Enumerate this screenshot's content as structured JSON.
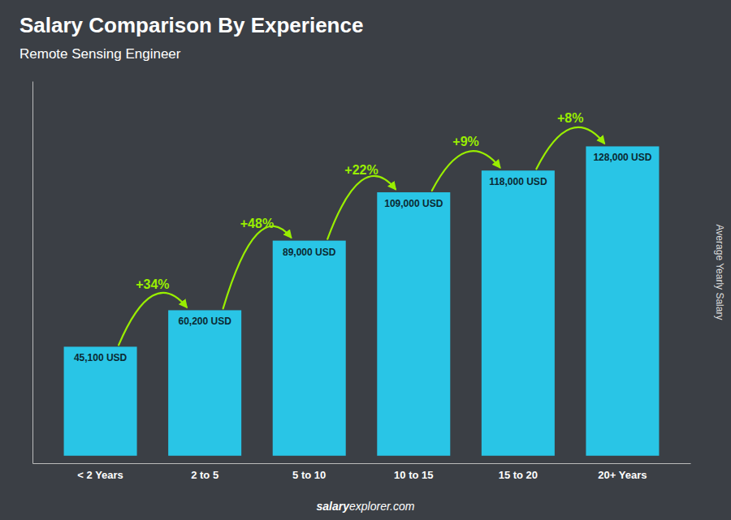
{
  "chart_data": {
    "type": "bar",
    "title": "Salary Comparison By Experience",
    "subtitle": "Remote Sensing Engineer",
    "y_label": "Average Yearly Salary",
    "categories": [
      "< 2 Years",
      "2 to 5",
      "5 to 10",
      "10 to 15",
      "15 to 20",
      "20+ Years"
    ],
    "values": [
      45100,
      60200,
      89000,
      109000,
      118000,
      128000
    ],
    "value_labels": [
      "45,100 USD",
      "60,200 USD",
      "89,000 USD",
      "109,000 USD",
      "118,000 USD",
      "128,000 USD"
    ],
    "data_labels": true,
    "color": "#29c5e6",
    "annotations": [
      {
        "text": "+34%",
        "color": "#99ee00"
      },
      {
        "text": "+48%",
        "color": "#99ee00"
      },
      {
        "text": "+22%",
        "color": "#99ee00"
      },
      {
        "text": "+9%",
        "color": "#99ee00"
      },
      {
        "text": "+8%",
        "color": "#99ee00"
      }
    ],
    "footer": [
      "salary",
      "explorer.com"
    ],
    "ylim": [
      -3100,
      155000
    ],
    "tick_labels": "x",
    "grid": false
  }
}
